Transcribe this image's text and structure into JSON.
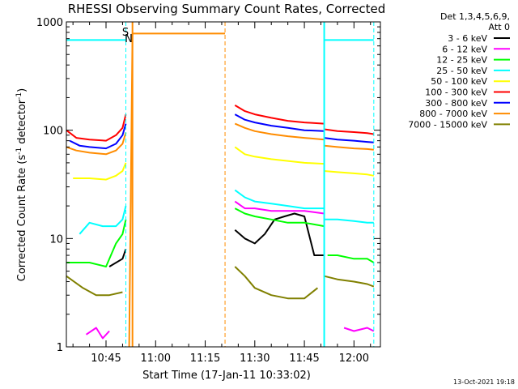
{
  "chart_data": {
    "type": "line",
    "title": "RHESSI Observing Summary Count Rates, Corrected",
    "xlabel": "Start Time (17-Jan-11 10:33:02)",
    "ylabel": "Corrected Count Rate (s⁻¹ detector⁻¹)",
    "ylabel_base": "Corrected Count Rate (s",
    "ylabel_sup1": "-1",
    "ylabel_mid": " detector",
    "ylabel_sup2": "-1",
    "ylabel_end": ")",
    "y_scale": "log",
    "xlim": [
      "10:33",
      "12:08"
    ],
    "ylim": [
      1,
      1000
    ],
    "x_ticks": [
      "10:45",
      "11:00",
      "11:15",
      "11:30",
      "11:45",
      "12:00"
    ],
    "y_ticks": [
      "1",
      "10",
      "100",
      "1000"
    ],
    "grid": false,
    "legend_position": "right",
    "legend_header": [
      "Det 1,3,4,5,6,9,",
      "Att 0"
    ],
    "series": [
      {
        "name": "3 - 6 keV",
        "color": "#000000",
        "segments": [
          {
            "x": [
              "10:46",
              "10:50",
              "10:51"
            ],
            "y": [
              5.5,
              6.5,
              8
            ]
          },
          {
            "x": [
              "11:24",
              "11:27",
              "11:30",
              "11:33",
              "11:36",
              "11:39",
              "11:42",
              "11:45",
              "11:48",
              "11:51"
            ],
            "y": [
              12,
              10,
              9,
              11,
              15,
              16,
              17,
              16,
              7,
              7
            ]
          }
        ]
      },
      {
        "name": "6 - 12 keV",
        "color": "#ff00ff",
        "segments": [
          {
            "x": [
              "10:39",
              "10:42",
              "10:44",
              "10:46"
            ],
            "y": [
              1.3,
              1.5,
              1.2,
              1.4
            ]
          },
          {
            "x": [
              "11:24",
              "11:27",
              "11:30",
              "11:35",
              "11:40",
              "11:45",
              "11:51"
            ],
            "y": [
              22,
              19,
              19,
              18,
              18,
              18,
              17
            ]
          },
          {
            "x": [
              "11:57",
              "12:00",
              "12:04",
              "12:06"
            ],
            "y": [
              1.5,
              1.4,
              1.5,
              1.4
            ]
          }
        ]
      },
      {
        "name": "12 - 25 keV",
        "color": "#00ff00",
        "segments": [
          {
            "x": [
              "10:33",
              "10:40",
              "10:45",
              "10:48",
              "10:50",
              "10:51"
            ],
            "y": [
              6,
              6,
              5.5,
              9,
              11,
              15
            ]
          },
          {
            "x": [
              "11:24",
              "11:27",
              "11:30",
              "11:35",
              "11:40",
              "11:45",
              "11:51"
            ],
            "y": [
              19,
              17,
              16,
              15,
              14,
              14,
              13
            ]
          },
          {
            "x": [
              "11:52",
              "11:55",
              "12:00",
              "12:04",
              "12:06"
            ],
            "y": [
              7,
              7,
              6.5,
              6.5,
              6
            ]
          }
        ]
      },
      {
        "name": "25 - 50 keV",
        "color": "#00ffff",
        "segments": [
          {
            "x": [
              "10:33",
              "10:37",
              "10:40",
              "10:45",
              "10:48",
              "10:50",
              "10:51"
            ],
            "y": [
              680,
              680,
              680,
              680,
              680,
              680,
              680
            ]
          },
          {
            "x": [
              "10:37",
              "10:40",
              "10:44",
              "10:48",
              "10:50",
              "10:51"
            ],
            "y": [
              11,
              14,
              13,
              13,
              15,
              20
            ]
          },
          {
            "x": [
              "11:24",
              "11:27",
              "11:30",
              "11:35",
              "11:40",
              "11:45",
              "11:51"
            ],
            "y": [
              28,
              24,
              22,
              21,
              20,
              19,
              19
            ]
          },
          {
            "x": [
              "11:51",
              "11:55",
              "12:00",
              "12:04",
              "12:06"
            ],
            "y": [
              15,
              15,
              14.5,
              14,
              14
            ]
          },
          {
            "x": [
              "11:51",
              "11:55",
              "12:00",
              "12:06"
            ],
            "y": [
              680,
              680,
              680,
              680
            ]
          }
        ]
      },
      {
        "name": "50 - 100 keV",
        "color": "#ffff00",
        "segments": [
          {
            "x": [
              "10:35",
              "10:40",
              "10:45",
              "10:48",
              "10:50",
              "10:51"
            ],
            "y": [
              36,
              36,
              35,
              38,
              42,
              50
            ]
          },
          {
            "x": [
              "11:24",
              "11:27",
              "11:30",
              "11:35",
              "11:40",
              "11:45",
              "11:51"
            ],
            "y": [
              70,
              60,
              57,
              54,
              52,
              50,
              49
            ]
          },
          {
            "x": [
              "11:51",
              "11:55",
              "12:00",
              "12:04",
              "12:06"
            ],
            "y": [
              42,
              41,
              40,
              39,
              38
            ]
          }
        ]
      },
      {
        "name": "100 - 300 keV",
        "color": "#ff0000",
        "segments": [
          {
            "x": [
              "10:33",
              "10:36",
              "10:40",
              "10:45",
              "10:48",
              "10:50",
              "10:51"
            ],
            "y": [
              100,
              85,
              82,
              80,
              90,
              105,
              140
            ]
          },
          {
            "x": [
              "11:24",
              "11:27",
              "11:30",
              "11:35",
              "11:40",
              "11:45",
              "11:51"
            ],
            "y": [
              170,
              150,
              140,
              130,
              122,
              118,
              115
            ]
          },
          {
            "x": [
              "11:51",
              "11:55",
              "12:00",
              "12:04",
              "12:06"
            ],
            "y": [
              102,
              98,
              96,
              94,
              92
            ]
          }
        ]
      },
      {
        "name": "300 - 800 keV",
        "color": "#0000ff",
        "segments": [
          {
            "x": [
              "10:34",
              "10:37",
              "10:40",
              "10:45",
              "10:48",
              "10:50",
              "10:51"
            ],
            "y": [
              80,
              72,
              70,
              68,
              75,
              90,
              115
            ]
          },
          {
            "x": [
              "11:24",
              "11:27",
              "11:30",
              "11:35",
              "11:40",
              "11:45",
              "11:51"
            ],
            "y": [
              140,
              125,
              118,
              110,
              105,
              100,
              98
            ]
          },
          {
            "x": [
              "11:51",
              "11:55",
              "12:00",
              "12:04",
              "12:06"
            ],
            "y": [
              85,
              82,
              80,
              78,
              77
            ]
          }
        ]
      },
      {
        "name": "800 - 7000 keV",
        "color": "#ff8c00",
        "segments": [
          {
            "x": [
              "10:33",
              "10:36",
              "10:40",
              "10:45",
              "10:48",
              "10:50",
              "10:51"
            ],
            "y": [
              70,
              65,
              62,
              60,
              65,
              75,
              95
            ]
          },
          {
            "x": [
              "10:52",
              "10:53",
              "11:21"
            ],
            "y": [
              1,
              780,
              780
            ]
          },
          {
            "x": [
              "11:24",
              "11:27",
              "11:30",
              "11:35",
              "11:40",
              "11:45",
              "11:51"
            ],
            "y": [
              115,
              105,
              98,
              92,
              88,
              85,
              82
            ]
          },
          {
            "x": [
              "11:51",
              "11:55",
              "12:00",
              "12:04",
              "12:06"
            ],
            "y": [
              72,
              70,
              68,
              67,
              66
            ]
          }
        ]
      },
      {
        "name": "7000 - 15000 keV",
        "color": "#808000",
        "segments": [
          {
            "x": [
              "10:33",
              "10:38",
              "10:42",
              "10:46",
              "10:50"
            ],
            "y": [
              4.5,
              3.5,
              3,
              3,
              3.2
            ]
          },
          {
            "x": [
              "11:24",
              "11:27",
              "11:30",
              "11:35",
              "11:40",
              "11:45",
              "11:49"
            ],
            "y": [
              5.5,
              4.5,
              3.5,
              3,
              2.8,
              2.8,
              3.5
            ]
          },
          {
            "x": [
              "11:51",
              "11:55",
              "12:00",
              "12:04",
              "12:06"
            ],
            "y": [
              4.5,
              4.2,
              4,
              3.8,
              3.6
            ]
          }
        ]
      }
    ],
    "markers": [
      {
        "time": "10:51",
        "color": "#00ffff",
        "style": "dashed",
        "label": ""
      },
      {
        "time": "10:53",
        "color": "#ff8c00",
        "style": "solid",
        "label": ""
      },
      {
        "time": "11:21",
        "color": "#ff8c00",
        "style": "dashed",
        "label": ""
      },
      {
        "time": "11:51",
        "color": "#00ffff",
        "style": "solid",
        "label": ""
      },
      {
        "time": "12:06",
        "color": "#00ffff",
        "style": "dashed",
        "label": ""
      }
    ],
    "annotations": {
      "s_label": "S",
      "n_label": "N",
      "s_color": "#ff8c00",
      "n_color": "#00ffff"
    }
  },
  "footer": {
    "timestamp": "13-Oct-2021 19:18"
  }
}
